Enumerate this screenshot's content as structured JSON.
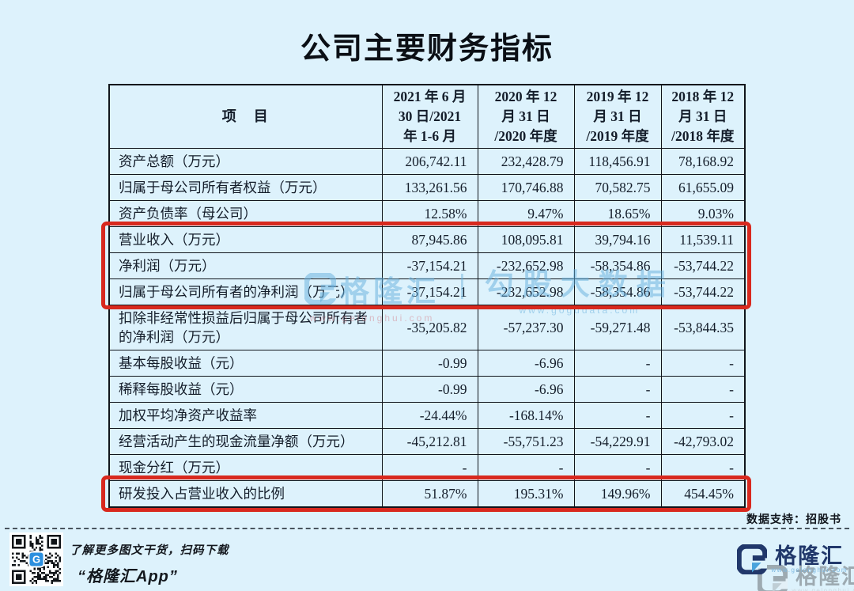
{
  "chart_data": {
    "type": "table",
    "title": "公司主要财务指标",
    "item_header": "项　目",
    "period_headers": [
      "2021 年 6 月\n30 日/2021\n年 1-6 月",
      "2020 年 12\n月 31 日\n/2020 年度",
      "2019 年 12\n月 31 日\n/2019 年度",
      "2018 年 12\n月 31 日\n/2018 年度"
    ],
    "rows": [
      {
        "label": "资产总额（万元）",
        "values": [
          "206,742.11",
          "232,428.79",
          "118,456.91",
          "78,168.92"
        ],
        "box": null
      },
      {
        "label": "归属于母公司所有者权益（万元）",
        "values": [
          "133,261.56",
          "170,746.88",
          "70,582.75",
          "61,655.09"
        ],
        "box": null
      },
      {
        "label": "资产负债率（母公司）",
        "values": [
          "12.58%",
          "9.47%",
          "18.65%",
          "9.03%"
        ],
        "box": null
      },
      {
        "label": "营业收入（万元）",
        "values": [
          "87,945.86",
          "108,095.81",
          "39,794.16",
          "11,539.11"
        ],
        "box": 1
      },
      {
        "label": "净利润（万元）",
        "values": [
          "-37,154.21",
          "-232,652.98",
          "-58,354.86",
          "-53,744.22"
        ],
        "box": 1
      },
      {
        "label": "归属于母公司所有者的净利润（万元）",
        "values": [
          "-37,154.21",
          "-232,652.98",
          "-58,354.86",
          "-53,744.22"
        ],
        "box": 1
      },
      {
        "label": "扣除非经常性损益后归属于母公司所有者的净利润（万元）",
        "values": [
          "-35,205.82",
          "-57,237.30",
          "-59,271.48",
          "-53,844.35"
        ],
        "box": null
      },
      {
        "label": "基本每股收益（元）",
        "values": [
          "-0.99",
          "-6.96",
          "-",
          "-"
        ],
        "box": null
      },
      {
        "label": "稀释每股收益（元）",
        "values": [
          "-0.99",
          "-6.96",
          "-",
          "-"
        ],
        "box": null
      },
      {
        "label": "加权平均净资产收益率",
        "values": [
          "-24.44%",
          "-168.14%",
          "-",
          "-"
        ],
        "box": null
      },
      {
        "label": "经营活动产生的现金流量净额（万元）",
        "values": [
          "-45,212.81",
          "-55,751.23",
          "-54,229.91",
          "-42,793.02"
        ],
        "box": null
      },
      {
        "label": "现金分红（万元）",
        "values": [
          "-",
          "-",
          "-",
          "-"
        ],
        "box": null
      },
      {
        "label": "研发投入占营业收入的比例",
        "values": [
          "51.87%",
          "195.31%",
          "149.96%",
          "454.45%"
        ],
        "box": 2
      }
    ],
    "highlighted_row_groups": [
      [
        "营业收入（万元）",
        "净利润（万元）",
        "归属于母公司所有者的净利润（万元）"
      ],
      [
        "研发投入占营业收入的比例"
      ]
    ]
  },
  "watermark": {
    "brand": "格隆汇",
    "brand_url": "www.gelonghui.com",
    "separator": "|",
    "partner": "勾股大数据",
    "partner_url": "www.gogudata.com"
  },
  "source_note": "数据支持：招股书",
  "footer": {
    "promo_line": "了解更多图文干货，扫码下载",
    "app_name": "“格隆汇App”",
    "qr_badge_letter": "G",
    "logo_text": "格隆汇",
    "logo_url": "www.gelonghui.com"
  },
  "colors": {
    "page_bg": "#ddf2fc",
    "highlight_red": "#d8291e",
    "logo_navy": "#21386b",
    "logo_blue": "#4aa3dc"
  }
}
